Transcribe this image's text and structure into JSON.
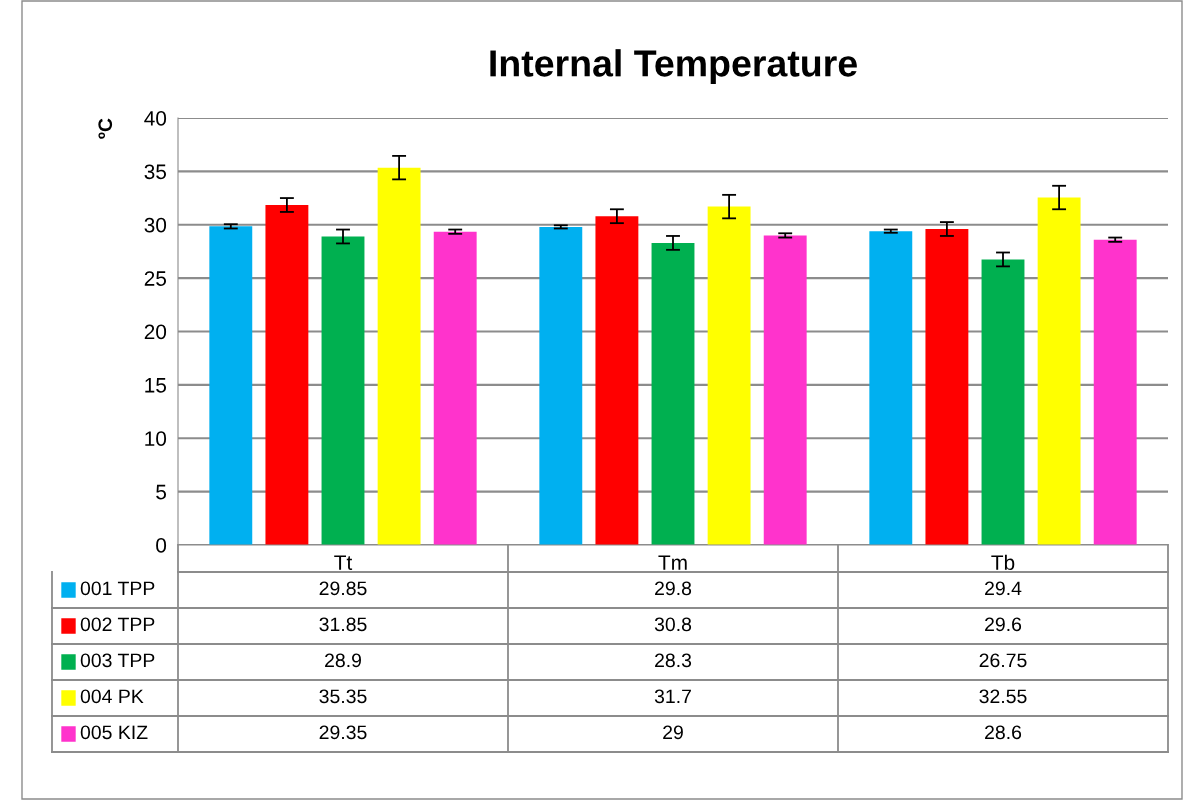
{
  "chart_data": {
    "type": "bar",
    "title": "Internal Temperature",
    "ylabel": "ºC",
    "categories": [
      "Tt",
      "Tm",
      "Tb"
    ],
    "series": [
      {
        "name": "001 TPP",
        "color": "#00b0f0",
        "values": [
          29.85,
          29.8,
          29.4
        ],
        "errors": [
          0.2,
          0.15,
          0.15
        ]
      },
      {
        "name": "002 TPP",
        "color": "#ff0000",
        "values": [
          31.85,
          30.8,
          29.6
        ],
        "errors": [
          0.65,
          0.65,
          0.65
        ]
      },
      {
        "name": "003 TPP",
        "color": "#00b050",
        "values": [
          28.9,
          28.3,
          26.75
        ],
        "errors": [
          0.65,
          0.65,
          0.65
        ]
      },
      {
        "name": "004 PK",
        "color": "#ffff00",
        "values": [
          35.35,
          31.7,
          32.55
        ],
        "errors": [
          1.1,
          1.1,
          1.1
        ]
      },
      {
        "name": "005 KIZ",
        "color": "#ff33cc",
        "values": [
          29.35,
          29,
          28.6
        ],
        "errors": [
          0.2,
          0.2,
          0.2
        ]
      }
    ],
    "ylim": [
      0,
      40
    ],
    "yticks": [
      0,
      5,
      10,
      15,
      20,
      25,
      30,
      35,
      40
    ],
    "grid": "y",
    "legend": "bottom",
    "data_labels": true
  }
}
